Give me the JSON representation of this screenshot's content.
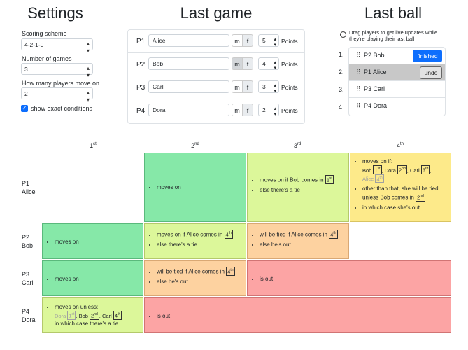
{
  "settings": {
    "title": "Settings",
    "scoring_label": "Scoring scheme",
    "scoring_value": "4-2-1-0",
    "games_label": "Number of games",
    "games_value": "3",
    "move_label": "How many players move on",
    "move_value": "2",
    "exact_label": "show exact conditions",
    "exact_checked": true
  },
  "last_game": {
    "title": "Last game",
    "points_label": "Points",
    "rows": [
      {
        "p": "P1",
        "name": "Alice",
        "m": "m",
        "f": "f",
        "points": "5"
      },
      {
        "p": "P2",
        "name": "Bob",
        "m": "m",
        "f": "f",
        "points": "4"
      },
      {
        "p": "P3",
        "name": "Carl",
        "m": "m",
        "f": "f",
        "points": "3"
      },
      {
        "p": "P4",
        "name": "Dora",
        "m": "m",
        "f": "f",
        "points": "2"
      }
    ]
  },
  "last_ball": {
    "title": "Last ball",
    "info": "Drag players to get live updates while they're playing their last ball",
    "items": [
      {
        "num": "1.",
        "label": "P2 Bob",
        "button": "finished"
      },
      {
        "num": "2.",
        "label": "P1 Alice",
        "button": "undo"
      },
      {
        "num": "3.",
        "label": "P3 Carl",
        "button": ""
      },
      {
        "num": "4.",
        "label": "P4 Dora",
        "button": ""
      }
    ]
  },
  "table": {
    "cols": [
      {
        "n": "1",
        "sup": "st"
      },
      {
        "n": "2",
        "sup": "nd"
      },
      {
        "n": "3",
        "sup": "rd"
      },
      {
        "n": "4",
        "sup": "th"
      }
    ],
    "rows": [
      {
        "p": "P1",
        "name": "Alice"
      },
      {
        "p": "P2",
        "name": "Bob"
      },
      {
        "p": "P3",
        "name": "Carl"
      },
      {
        "p": "P4",
        "name": "Dora"
      }
    ],
    "texts": {
      "moves_on": "moves on",
      "moves_on_if": "moves on if:",
      "moves_on_if_bob_comes_in": "moves on if Bob comes in",
      "else_tie": "else there's a tie",
      "other_than_that": "other than that, she will be tied unless Bob comes in",
      "in_which_case_out": "in which case she's out",
      "moves_on_if_alice_comes_in": "moves on if Alice comes in",
      "tied_if_alice_comes_in": "will be tied if Alice comes in",
      "else_he_out": "else he's out",
      "is_out": "is out",
      "moves_on_unless": "moves on unless:",
      "in_which_case_tie": "in which case there's a tie"
    },
    "names": {
      "bob": "Bob",
      "dora": "Dora",
      "carl": "Carl",
      "alice": "Alice"
    },
    "colors": {
      "green": "#86e8a8",
      "lime": "#dcf79a",
      "yellow": "#fdea8a",
      "orange": "#fdd2a0",
      "red": "#fca4a4"
    }
  }
}
